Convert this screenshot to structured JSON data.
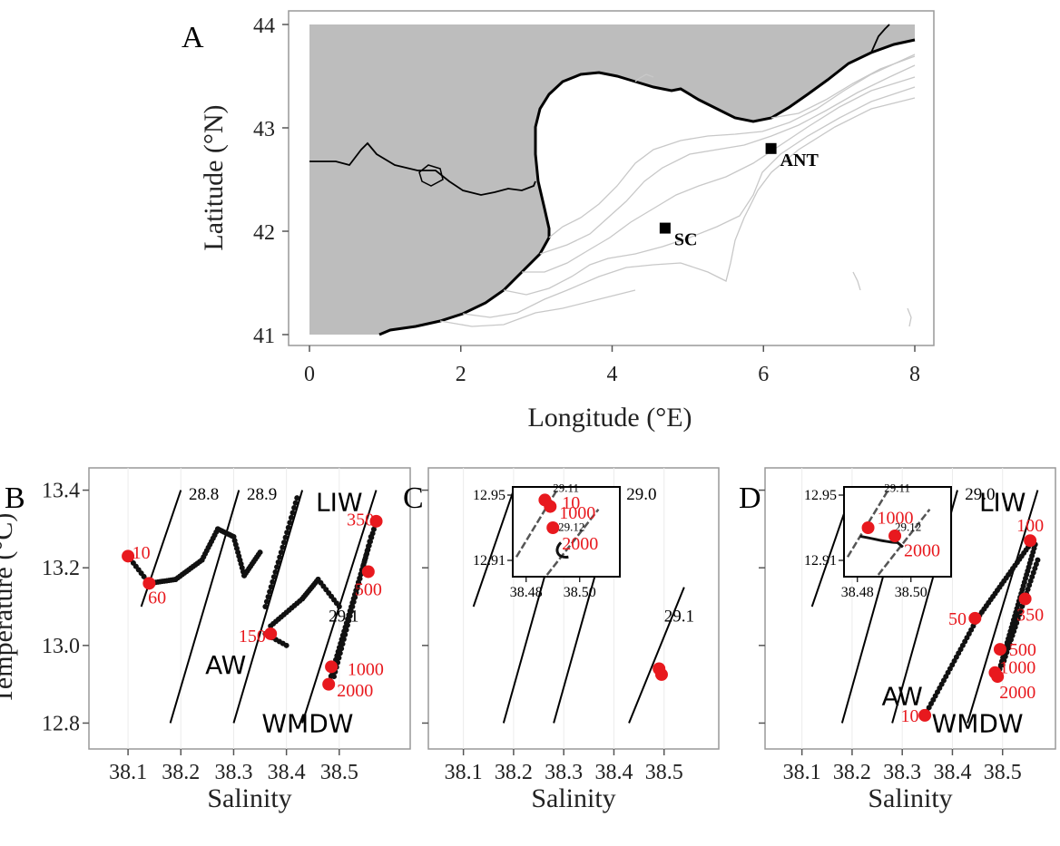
{
  "colors": {
    "land": "#bdbdbd",
    "coast": "#000000",
    "isobath": "#c8c8c8",
    "depth_label": "#e8191e",
    "point": "#e8191e",
    "water_profile": "#111111"
  },
  "chart_data": [
    {
      "type": "map",
      "panel_label": "A",
      "xlabel": "Longitude (°E)",
      "ylabel": "Latitude (°N)",
      "xlim": [
        0,
        8
      ],
      "ylim": [
        41,
        44
      ],
      "x_ticks": [
        {
          "v": 0,
          "label": "0"
        },
        {
          "v": 2,
          "label": "2"
        },
        {
          "v": 4,
          "label": "4"
        },
        {
          "v": 6,
          "label": "6"
        },
        {
          "v": 8,
          "label": "8"
        }
      ],
      "y_ticks": [
        {
          "v": 41,
          "label": "41"
        },
        {
          "v": 42,
          "label": "42"
        },
        {
          "v": 43,
          "label": "43"
        },
        {
          "v": 44,
          "label": "44"
        }
      ],
      "stations": [
        {
          "name": "ANT",
          "lon": 6.1,
          "lat": 42.8
        },
        {
          "name": "SC",
          "lon": 4.7,
          "lat": 42.03
        }
      ]
    },
    {
      "type": "scatter",
      "panel_label": "B",
      "xlabel": "Salinity",
      "ylabel": "Temperature (°C)",
      "xlim": [
        38.05,
        38.6
      ],
      "ylim": [
        12.78,
        13.42
      ],
      "x_ticks": [
        {
          "v": 38.1,
          "label": "38.1"
        },
        {
          "v": 38.2,
          "label": "38.2"
        },
        {
          "v": 38.3,
          "label": "38.3"
        },
        {
          "v": 38.4,
          "label": "38.4"
        },
        {
          "v": 38.5,
          "label": "38.5"
        }
      ],
      "y_ticks": [
        {
          "v": 12.8,
          "label": "12.8"
        },
        {
          "v": 13.0,
          "label": "13.0"
        },
        {
          "v": 13.2,
          "label": "13.2"
        },
        {
          "v": 13.4,
          "label": "13.4"
        }
      ],
      "isopycnals": [
        {
          "label": "28.8",
          "s0": 38.125,
          "t0": 13.1,
          "s1": 38.2,
          "t1": 13.4,
          "label_s": 38.215,
          "label_t": 13.39
        },
        {
          "label": "28.9",
          "s0": 38.18,
          "t0": 12.8,
          "s1": 38.31,
          "t1": 13.4,
          "label_s": 38.325,
          "label_t": 13.39
        },
        {
          "label": "",
          "s0": 38.3,
          "t0": 12.8,
          "s1": 38.43,
          "t1": 13.4,
          "label_s": 0,
          "label_t": 0
        },
        {
          "label": "29.1",
          "s0": 38.43,
          "t0": 12.8,
          "s1": 38.57,
          "t1": 13.4,
          "label_s": 38.48,
          "label_t": 13.075
        }
      ],
      "water_masses": [
        {
          "label": "AW",
          "s": 38.285,
          "t": 12.95
        },
        {
          "label": "LIW",
          "s": 38.5,
          "t": 13.37
        },
        {
          "label": "WMDW",
          "s": 38.44,
          "t": 12.8
        }
      ],
      "depth_points": [
        {
          "depth": "10",
          "s": 38.1,
          "t": 13.23,
          "ls": 38.125,
          "lt": 13.24
        },
        {
          "depth": "60",
          "s": 38.14,
          "t": 13.16,
          "ls": 38.155,
          "lt": 13.125
        },
        {
          "depth": "150",
          "s": 38.37,
          "t": 13.03,
          "ls": 38.335,
          "lt": 13.025
        },
        {
          "depth": "350",
          "s": 38.57,
          "t": 13.32,
          "ls": 38.54,
          "lt": 13.325
        },
        {
          "depth": "500",
          "s": 38.555,
          "t": 13.19,
          "ls": 38.555,
          "lt": 13.145
        },
        {
          "depth": "1000",
          "s": 38.485,
          "t": 12.945,
          "ls": 38.55,
          "lt": 12.94
        },
        {
          "depth": "2000",
          "s": 38.48,
          "t": 12.9,
          "ls": 38.53,
          "lt": 12.885
        }
      ]
    },
    {
      "type": "scatter",
      "panel_label": "C",
      "xlabel": "Salinity",
      "xlim": [
        38.05,
        38.6
      ],
      "ylim": [
        12.78,
        13.42
      ],
      "x_ticks": [
        {
          "v": 38.1,
          "label": "38.1"
        },
        {
          "v": 38.2,
          "label": "38.2"
        },
        {
          "v": 38.3,
          "label": "38.3"
        },
        {
          "v": 38.4,
          "label": "38.4"
        },
        {
          "v": 38.5,
          "label": "38.5"
        }
      ],
      "isopycnals": [
        {
          "label": "",
          "s0": 38.12,
          "t0": 13.1,
          "s1": 38.2,
          "t1": 13.4,
          "label_s": 0,
          "label_t": 0
        },
        {
          "label": "",
          "s0": 38.18,
          "t0": 12.8,
          "s1": 38.31,
          "t1": 13.4,
          "label_s": 0,
          "label_t": 0
        },
        {
          "label": "29.0",
          "s0": 38.28,
          "t0": 12.8,
          "s1": 38.41,
          "t1": 13.4,
          "label_s": 38.425,
          "label_t": 13.39
        },
        {
          "label": "29.1",
          "s0": 38.43,
          "t0": 12.8,
          "s1": 38.54,
          "t1": 13.15,
          "label_s": 38.5,
          "label_t": 13.075
        }
      ],
      "depth_points": [
        {
          "s": 38.49,
          "t": 12.94
        },
        {
          "s": 38.495,
          "t": 12.925
        }
      ],
      "inset": {
        "xlim": [
          38.475,
          38.515
        ],
        "ylim": [
          12.9,
          12.955
        ],
        "x_ticks": [
          {
            "v": 38.48,
            "label": "38.48"
          },
          {
            "v": 38.5,
            "label": "38.50"
          }
        ],
        "y_ticks": [
          {
            "v": 12.91,
            "label": "12.91"
          },
          {
            "v": 12.95,
            "label": "12.95"
          }
        ],
        "isopycnal_labels": [
          {
            "label": "29.11",
            "s": 38.49,
            "t": 12.952
          },
          {
            "label": "29.12",
            "s": 38.492,
            "t": 12.928
          }
        ],
        "depth_points": [
          {
            "depth": "10",
            "s": 38.487,
            "t": 12.947,
            "ls": 38.49,
            "lt": 12.946
          },
          {
            "depth": "1000",
            "s": 38.489,
            "t": 12.943,
            "ls": 38.489,
            "lt": 12.94
          },
          {
            "depth": "2000",
            "s": 38.49,
            "t": 12.93,
            "ls": 38.49,
            "lt": 12.921
          }
        ]
      }
    },
    {
      "type": "scatter",
      "panel_label": "D",
      "xlabel": "Salinity",
      "xlim": [
        38.05,
        38.6
      ],
      "ylim": [
        12.78,
        13.42
      ],
      "x_ticks": [
        {
          "v": 38.1,
          "label": "38.1"
        },
        {
          "v": 38.2,
          "label": "38.2"
        },
        {
          "v": 38.3,
          "label": "38.3"
        },
        {
          "v": 38.4,
          "label": "38.4"
        },
        {
          "v": 38.5,
          "label": "38.5"
        }
      ],
      "isopycnals": [
        {
          "label": "",
          "s0": 38.12,
          "t0": 13.1,
          "s1": 38.2,
          "t1": 13.4,
          "label_s": 0,
          "label_t": 0
        },
        {
          "label": "",
          "s0": 38.18,
          "t0": 12.8,
          "s1": 38.31,
          "t1": 13.4,
          "label_s": 0,
          "label_t": 0
        },
        {
          "label": "29.0",
          "s0": 38.28,
          "t0": 12.8,
          "s1": 38.41,
          "t1": 13.4,
          "label_s": 38.425,
          "label_t": 13.39
        },
        {
          "label": "",
          "s0": 38.43,
          "t0": 12.8,
          "s1": 38.57,
          "t1": 13.4,
          "label_s": 0,
          "label_t": 0
        }
      ],
      "water_masses": [
        {
          "label": "AW",
          "s": 38.3,
          "t": 12.87
        },
        {
          "label": "LIW",
          "s": 38.5,
          "t": 13.37
        },
        {
          "label": "WMDW",
          "s": 38.45,
          "t": 12.8
        }
      ],
      "depth_points": [
        {
          "depth": "10",
          "s": 38.345,
          "t": 12.82,
          "ls": 38.315,
          "lt": 12.82
        },
        {
          "depth": "50",
          "s": 38.445,
          "t": 13.07,
          "ls": 38.41,
          "lt": 13.07
        },
        {
          "depth": "100",
          "s": 38.555,
          "t": 13.27,
          "ls": 38.555,
          "lt": 13.31
        },
        {
          "depth": "350",
          "s": 38.545,
          "t": 13.12,
          "ls": 38.555,
          "lt": 13.08
        },
        {
          "depth": "500",
          "s": 38.495,
          "t": 12.99,
          "ls": 38.54,
          "lt": 12.99
        },
        {
          "depth": "1000",
          "s": 38.485,
          "t": 12.93,
          "ls": 38.53,
          "lt": 12.945
        },
        {
          "depth": "2000",
          "s": 38.49,
          "t": 12.92,
          "ls": 38.53,
          "lt": 12.88
        }
      ],
      "inset": {
        "xlim": [
          38.475,
          38.515
        ],
        "ylim": [
          12.9,
          12.955
        ],
        "x_ticks": [
          {
            "v": 38.48,
            "label": "38.48"
          },
          {
            "v": 38.5,
            "label": "38.50"
          }
        ],
        "y_ticks": [
          {
            "v": 12.91,
            "label": "12.91"
          },
          {
            "v": 12.95,
            "label": "12.95"
          }
        ],
        "isopycnal_labels": [
          {
            "label": "29.11",
            "s": 38.49,
            "t": 12.952
          },
          {
            "label": "29.12",
            "s": 38.494,
            "t": 12.928
          }
        ],
        "depth_points": [
          {
            "depth": "1000",
            "s": 38.484,
            "t": 12.93,
            "ls": 38.484,
            "lt": 12.937
          },
          {
            "depth": "2000",
            "s": 38.494,
            "t": 12.925,
            "ls": 38.494,
            "lt": 12.917
          }
        ]
      }
    }
  ]
}
